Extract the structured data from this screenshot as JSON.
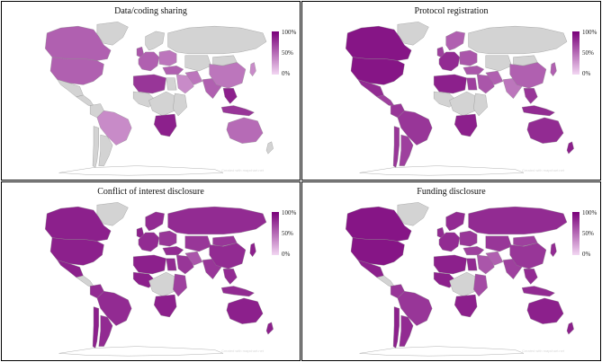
{
  "legend": {
    "max_label": "100%",
    "mid_label": "50%",
    "min_label": "0%",
    "color_high": "#7a007a",
    "color_low": "#f2d6f2",
    "no_data_color": "#d3d3d3",
    "no_data_color_name": "grey"
  },
  "chart_data": [
    {
      "type": "choropleth",
      "title": "Data/coding sharing",
      "credit": "Created with mapchart.net",
      "values": {
        "usa": 0.55,
        "canada": 0.55,
        "mexico": null,
        "central_america": null,
        "colombia": null,
        "brazil": 0.35,
        "argentina": null,
        "chile": null,
        "greenland": null,
        "uk": 0.6,
        "western_europe": 0.55,
        "scandinavia": null,
        "eastern_europe": 0.45,
        "russia": null,
        "turkey": 0.55,
        "north_africa": 0.75,
        "egypt": null,
        "west_africa": null,
        "central_africa": null,
        "east_africa": null,
        "southern_africa": 0.85,
        "middle_east": 0.35,
        "iran": 0.45,
        "central_asia": null,
        "india": 0.55,
        "china": 0.45,
        "mongolia": null,
        "japan": 0.35,
        "southeast_asia": 0.85,
        "indonesia": 0.75,
        "australia": 0.5,
        "new_zealand": null
      }
    },
    {
      "type": "choropleth",
      "title": "Protocol registration",
      "credit": "Created with mapchart.net",
      "values": {
        "usa": 0.9,
        "canada": 0.9,
        "mexico": 0.8,
        "central_america": 0.7,
        "colombia": 0.75,
        "brazil": 0.75,
        "argentina": 0.7,
        "chile": 0.75,
        "greenland": null,
        "uk": 0.7,
        "western_europe": 0.8,
        "scandinavia": 0.55,
        "eastern_europe": 0.6,
        "russia": null,
        "turkey": 0.6,
        "north_africa": 0.85,
        "egypt": 0.7,
        "west_africa": null,
        "central_africa": null,
        "east_africa": null,
        "southern_africa": 0.85,
        "middle_east": 0.6,
        "iran": 0.55,
        "central_asia": null,
        "india": 0.45,
        "china": 0.55,
        "mongolia": null,
        "japan": 0.55,
        "southeast_asia": 0.75,
        "indonesia": 0.8,
        "australia": 0.8,
        "new_zealand": 0.85
      }
    },
    {
      "type": "choropleth",
      "title": "Conflict of interest disclosure",
      "credit": "Created with mapchart.net",
      "values": {
        "usa": 0.85,
        "canada": 0.85,
        "mexico": 0.85,
        "central_america": null,
        "colombia": 0.8,
        "brazil": 0.8,
        "argentina": 0.8,
        "chile": 0.85,
        "greenland": null,
        "uk": 0.85,
        "western_europe": 0.8,
        "scandinavia": 0.8,
        "eastern_europe": 0.75,
        "russia": 0.8,
        "turkey": 0.8,
        "north_africa": 0.85,
        "egypt": 0.8,
        "west_africa": 0.85,
        "central_africa": null,
        "east_africa": 0.7,
        "southern_africa": 0.85,
        "middle_east": 0.75,
        "iran": 0.6,
        "central_asia": 0.75,
        "india": 0.75,
        "china": 0.8,
        "mongolia": 0.75,
        "japan": 0.85,
        "southeast_asia": 0.8,
        "indonesia": 0.8,
        "australia": 0.85,
        "new_zealand": 0.85
      }
    },
    {
      "type": "choropleth",
      "title": "Funding disclosure",
      "credit": "Created with mapchart.net",
      "values": {
        "usa": 0.9,
        "canada": 0.9,
        "mexico": 0.85,
        "central_america": null,
        "colombia": 0.75,
        "brazil": 0.75,
        "argentina": 0.8,
        "chile": 0.85,
        "greenland": null,
        "uk": 0.8,
        "western_europe": 0.8,
        "scandinavia": 0.8,
        "eastern_europe": 0.75,
        "russia": 0.8,
        "turkey": 0.7,
        "north_africa": 0.85,
        "egypt": 0.8,
        "west_africa": 0.85,
        "central_africa": null,
        "east_africa": 0.65,
        "southern_africa": 0.85,
        "middle_east": 0.6,
        "iran": 0.55,
        "central_asia": 0.75,
        "india": 0.7,
        "china": 0.75,
        "mongolia": 0.7,
        "japan": 0.8,
        "southeast_asia": 0.8,
        "indonesia": 0.8,
        "australia": 0.85,
        "new_zealand": 0.85
      }
    }
  ]
}
